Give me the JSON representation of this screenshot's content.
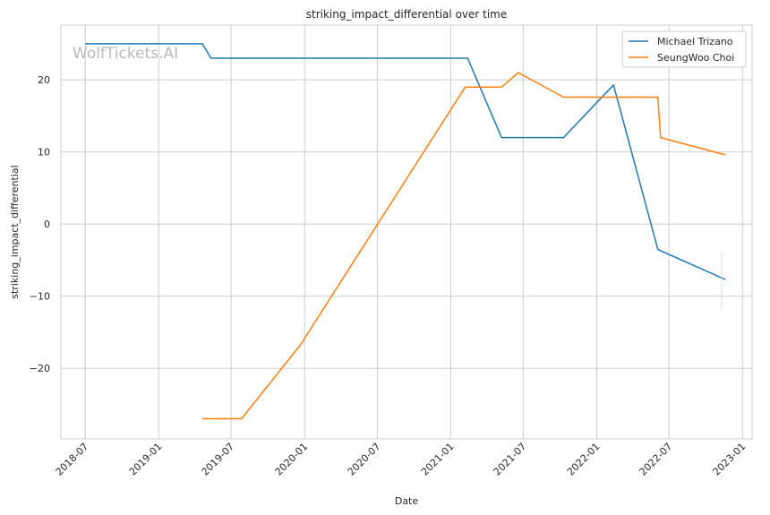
{
  "chart_data": {
    "type": "line",
    "title": "striking_impact_differential over time",
    "xlabel": "Date",
    "ylabel": "striking_impact_differential",
    "watermark": "WolfTickets.AI",
    "xlim": [
      "2018-05-01",
      "2023-01-25"
    ],
    "ylim": [
      -29.8,
      27.6
    ],
    "x_ticks": [
      "2018-07-01",
      "2019-01-01",
      "2019-07-01",
      "2020-01-01",
      "2020-07-01",
      "2021-01-01",
      "2021-07-01",
      "2022-01-01",
      "2022-07-01",
      "2023-01-01"
    ],
    "x_tick_labels": [
      "2018-07",
      "2019-01",
      "2019-07",
      "2020-01",
      "2020-07",
      "2021-01",
      "2021-07",
      "2022-01",
      "2022-07",
      "2023-01"
    ],
    "y_ticks": [
      -20,
      -10,
      0,
      10,
      20
    ],
    "y_tick_labels": [
      "−20",
      "−10",
      "0",
      "10",
      "20"
    ],
    "grid": true,
    "legend_position": "top-right",
    "series": [
      {
        "name": "Michael Trizano",
        "color": "#1f77b4",
        "x": [
          "2018-07-01",
          "2019-04-20",
          "2019-05-12",
          "2021-02-12",
          "2021-05-08",
          "2021-10-10",
          "2022-02-12",
          "2022-06-03",
          "2022-06-10",
          "2022-11-19"
        ],
        "y": [
          25.0,
          25.0,
          23.0,
          23.0,
          12.0,
          12.0,
          19.3,
          -3.5,
          -3.7,
          -7.7
        ]
      },
      {
        "name": "SeungWoo Choi",
        "color": "#ff7f0e",
        "x": [
          "2019-04-20",
          "2019-07-27",
          "2019-12-21",
          "2021-02-06",
          "2021-05-08",
          "2021-06-19",
          "2021-10-10",
          "2022-06-03",
          "2022-06-10",
          "2022-11-19"
        ],
        "y": [
          -27.0,
          -27.0,
          -16.8,
          19.0,
          19.0,
          21.0,
          17.6,
          17.6,
          12.0,
          9.6
        ]
      }
    ]
  }
}
